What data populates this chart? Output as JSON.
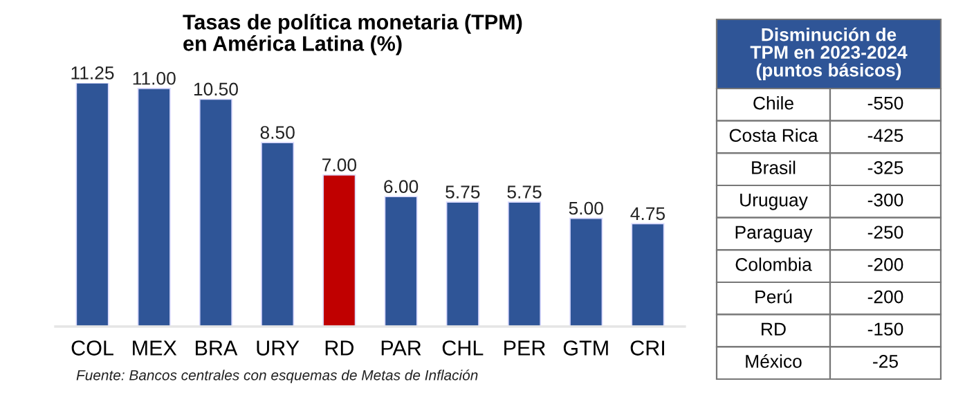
{
  "chart_data": [
    {
      "type": "bar",
      "title": "Tasas de política monetaria (TPM)\nen América Latina (%)",
      "categories": [
        "COL",
        "MEX",
        "BRA",
        "URY",
        "RD",
        "PAR",
        "CHL",
        "PER",
        "GTM",
        "CRI"
      ],
      "values": [
        11.25,
        11.0,
        10.5,
        8.5,
        7.0,
        6.0,
        5.75,
        5.75,
        5.0,
        4.75
      ],
      "colors": [
        "#2f5597",
        "#2f5597",
        "#2f5597",
        "#2f5597",
        "#c00000",
        "#2f5597",
        "#2f5597",
        "#2f5597",
        "#2f5597",
        "#2f5597"
      ],
      "value_labels": [
        "11.25",
        "11.00",
        "10.50",
        "8.50",
        "7.00",
        "6.00",
        "5.75",
        "5.75",
        "5.00",
        "4.75"
      ],
      "annotations": [
        "Fuente: Bancos centrales con esquemas de Metas de Inflación"
      ]
    },
    {
      "type": "other",
      "title": "Disminución de\nTPM en 2023-2024\n(puntos básicos)",
      "categories": [
        "Chile",
        "Costa Rica",
        "Brasil",
        "Uruguay",
        "Paraguay",
        "Colombia",
        "Perú",
        "RD",
        "México"
      ],
      "values": [
        -550,
        -425,
        -325,
        -300,
        -250,
        -200,
        -200,
        -150,
        -25
      ],
      "value_labels": [
        "-550",
        "-425",
        "-325",
        "-300",
        "-250",
        "-200",
        "-200",
        "-150",
        "-25"
      ]
    }
  ]
}
